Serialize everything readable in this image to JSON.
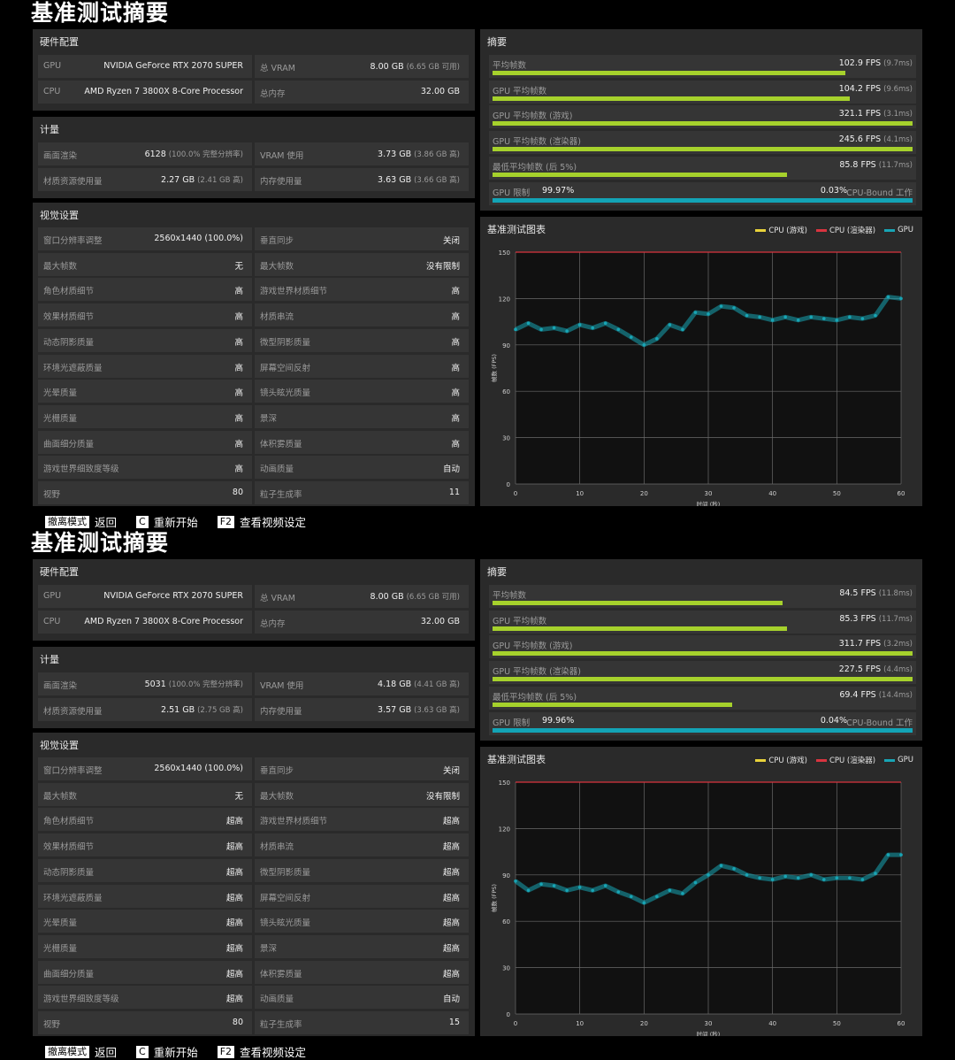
{
  "reports": [
    {
      "title": "基准测试摘要",
      "hardware": {
        "title": "硬件配置",
        "rows": [
          [
            {
              "label": "GPU",
              "value": "NVIDIA GeForce RTX 2070 SUPER",
              "sub": ""
            },
            {
              "label": "总 VRAM",
              "value": "8.00 GB",
              "sub": "(6.65 GB 可用)"
            }
          ],
          [
            {
              "label": "CPU",
              "value": "AMD Ryzen 7 3800X 8-Core Processor",
              "sub": ""
            },
            {
              "label": "总内存",
              "value": "32.00 GB",
              "sub": ""
            }
          ]
        ]
      },
      "metrics": {
        "title": "计量",
        "rows": [
          [
            {
              "label": "画面渲染",
              "value": "6128",
              "sub": "(100.0% 完整分辨率)"
            },
            {
              "label": "VRAM 使用",
              "value": "3.73 GB",
              "sub": "(3.86 GB 高)"
            }
          ],
          [
            {
              "label": "材质资源使用量",
              "value": "2.27 GB",
              "sub": "(2.41 GB 高)"
            },
            {
              "label": "内存使用量",
              "value": "3.63 GB",
              "sub": "(3.66 GB 高)"
            }
          ]
        ]
      },
      "visual": {
        "title": "视觉设置",
        "rows": [
          [
            {
              "label": "窗口分辨率调整",
              "value": "2560x1440 (100.0%)"
            },
            {
              "label": "垂直同步",
              "value": "关闭"
            }
          ],
          [
            {
              "label": "最大帧数",
              "value": "无"
            },
            {
              "label": "最大帧数",
              "value": "没有限制"
            }
          ],
          [
            {
              "label": "角色材质细节",
              "value": "高"
            },
            {
              "label": "游戏世界材质细节",
              "value": "高"
            }
          ],
          [
            {
              "label": "效果材质细节",
              "value": "高"
            },
            {
              "label": "材质串流",
              "value": "高"
            }
          ],
          [
            {
              "label": "动态阴影质量",
              "value": "高"
            },
            {
              "label": "微型阴影质量",
              "value": "高"
            }
          ],
          [
            {
              "label": "环境光遮蔽质量",
              "value": "高"
            },
            {
              "label": "屏幕空间反射",
              "value": "高"
            }
          ],
          [
            {
              "label": "光晕质量",
              "value": "高"
            },
            {
              "label": "镜头眩光质量",
              "value": "高"
            }
          ],
          [
            {
              "label": "光栅质量",
              "value": "高"
            },
            {
              "label": "景深",
              "value": "高"
            }
          ],
          [
            {
              "label": "曲面细分质量",
              "value": "高"
            },
            {
              "label": "体积雾质量",
              "value": "高"
            }
          ],
          [
            {
              "label": "游戏世界细致度等级",
              "value": "高"
            },
            {
              "label": "动画质量",
              "value": "自动"
            }
          ],
          [
            {
              "label": "视野",
              "value": "80"
            },
            {
              "label": "粒子生成率",
              "value": "11"
            }
          ]
        ]
      },
      "summary": {
        "title": "摘要",
        "rows": [
          {
            "label": "平均帧数",
            "value": "102.9 FPS",
            "sub": "(9.7ms)",
            "fraction": 0.84
          },
          {
            "label": "GPU 平均帧数",
            "value": "104.2 FPS",
            "sub": "(9.6ms)",
            "fraction": 0.85
          },
          {
            "label": "GPU 平均帧数 (游戏)",
            "value": "321.1 FPS",
            "sub": "(3.1ms)",
            "fraction": 1.0
          },
          {
            "label": "GPU 平均帧数 (渲染器)",
            "value": "245.6 FPS",
            "sub": "(4.1ms)",
            "fraction": 1.0
          },
          {
            "label": "最低平均帧数 (后 5%)",
            "value": "85.8 FPS",
            "sub": "(11.7ms)",
            "fraction": 0.7
          }
        ],
        "gpu_bound": {
          "label": "GPU 限制",
          "gpu_pct": "99.97%",
          "cpu_pct": "0.03%",
          "cpu_label": "CPU-Bound 工作",
          "fraction": 0.9997
        }
      },
      "chart": {
        "title": "基准测试图表",
        "legend": [
          {
            "name": "CPU (游戏)",
            "color": "#e8d23a"
          },
          {
            "name": "CPU (渲染器)",
            "color": "#d9343f"
          },
          {
            "name": "GPU",
            "color": "#18a5b5"
          }
        ]
      },
      "chart_data": {
        "type": "scatter",
        "xlabel": "时间 (秒)",
        "ylabel": "帧数 (FPS)",
        "xlim": [
          0,
          60
        ],
        "ylim": [
          0,
          150
        ],
        "xticks": [
          0,
          10,
          20,
          30,
          40,
          50,
          60
        ],
        "yticks": [
          0,
          30,
          60,
          90,
          120,
          150
        ],
        "grid": true,
        "series": [
          {
            "name": "GPU",
            "color": "#18a5b5",
            "x": [
              0,
              2,
              4,
              6,
              8,
              10,
              12,
              14,
              16,
              18,
              20,
              22,
              24,
              26,
              28,
              30,
              32,
              34,
              36,
              38,
              40,
              42,
              44,
              46,
              48,
              50,
              52,
              54,
              56,
              58,
              60
            ],
            "y": [
              100,
              104,
              100,
              101,
              99,
              103,
              101,
              104,
              100,
              95,
              90,
              94,
              103,
              100,
              111,
              110,
              115,
              114,
              109,
              108,
              106,
              108,
              106,
              108,
              107,
              106,
              108,
              107,
              109,
              121,
              120
            ]
          },
          {
            "name": "CPU (渲染器)",
            "color": "#d9343f",
            "x": [
              0,
              60
            ],
            "y": [
              150,
              150
            ]
          }
        ]
      },
      "footer": [
        {
          "key": "撤离模式",
          "label": "返回"
        },
        {
          "key": "C",
          "label": "重新开始"
        },
        {
          "key": "F2",
          "label": "查看视频设定"
        }
      ]
    },
    {
      "title": "基准测试摘要",
      "hardware": {
        "title": "硬件配置",
        "rows": [
          [
            {
              "label": "GPU",
              "value": "NVIDIA GeForce RTX 2070 SUPER",
              "sub": ""
            },
            {
              "label": "总 VRAM",
              "value": "8.00 GB",
              "sub": "(6.65 GB 可用)"
            }
          ],
          [
            {
              "label": "CPU",
              "value": "AMD Ryzen 7 3800X 8-Core Processor",
              "sub": ""
            },
            {
              "label": "总内存",
              "value": "32.00 GB",
              "sub": ""
            }
          ]
        ]
      },
      "metrics": {
        "title": "计量",
        "rows": [
          [
            {
              "label": "画面渲染",
              "value": "5031",
              "sub": "(100.0% 完整分辨率)"
            },
            {
              "label": "VRAM 使用",
              "value": "4.18 GB",
              "sub": "(4.41 GB 高)"
            }
          ],
          [
            {
              "label": "材质资源使用量",
              "value": "2.51 GB",
              "sub": "(2.75 GB 高)"
            },
            {
              "label": "内存使用量",
              "value": "3.57 GB",
              "sub": "(3.63 GB 高)"
            }
          ]
        ]
      },
      "visual": {
        "title": "视觉设置",
        "rows": [
          [
            {
              "label": "窗口分辨率调整",
              "value": "2560x1440 (100.0%)"
            },
            {
              "label": "垂直同步",
              "value": "关闭"
            }
          ],
          [
            {
              "label": "最大帧数",
              "value": "无"
            },
            {
              "label": "最大帧数",
              "value": "没有限制"
            }
          ],
          [
            {
              "label": "角色材质细节",
              "value": "超高"
            },
            {
              "label": "游戏世界材质细节",
              "value": "超高"
            }
          ],
          [
            {
              "label": "效果材质细节",
              "value": "超高"
            },
            {
              "label": "材质串流",
              "value": "超高"
            }
          ],
          [
            {
              "label": "动态阴影质量",
              "value": "超高"
            },
            {
              "label": "微型阴影质量",
              "value": "超高"
            }
          ],
          [
            {
              "label": "环境光遮蔽质量",
              "value": "超高"
            },
            {
              "label": "屏幕空间反射",
              "value": "超高"
            }
          ],
          [
            {
              "label": "光晕质量",
              "value": "超高"
            },
            {
              "label": "镜头眩光质量",
              "value": "超高"
            }
          ],
          [
            {
              "label": "光栅质量",
              "value": "超高"
            },
            {
              "label": "景深",
              "value": "超高"
            }
          ],
          [
            {
              "label": "曲面细分质量",
              "value": "超高"
            },
            {
              "label": "体积雾质量",
              "value": "超高"
            }
          ],
          [
            {
              "label": "游戏世界细致度等级",
              "value": "超高"
            },
            {
              "label": "动画质量",
              "value": "自动"
            }
          ],
          [
            {
              "label": "视野",
              "value": "80"
            },
            {
              "label": "粒子生成率",
              "value": "15"
            }
          ]
        ]
      },
      "summary": {
        "title": "摘要",
        "rows": [
          {
            "label": "平均帧数",
            "value": "84.5 FPS",
            "sub": "(11.8ms)",
            "fraction": 0.69
          },
          {
            "label": "GPU 平均帧数",
            "value": "85.3 FPS",
            "sub": "(11.7ms)",
            "fraction": 0.7
          },
          {
            "label": "GPU 平均帧数 (游戏)",
            "value": "311.7 FPS",
            "sub": "(3.2ms)",
            "fraction": 1.0
          },
          {
            "label": "GPU 平均帧数 (渲染器)",
            "value": "227.5 FPS",
            "sub": "(4.4ms)",
            "fraction": 1.0
          },
          {
            "label": "最低平均帧数 (后 5%)",
            "value": "69.4 FPS",
            "sub": "(14.4ms)",
            "fraction": 0.57
          }
        ],
        "gpu_bound": {
          "label": "GPU 限制",
          "gpu_pct": "99.96%",
          "cpu_pct": "0.04%",
          "cpu_label": "CPU-Bound 工作",
          "fraction": 0.9996
        }
      },
      "chart": {
        "title": "基准测试图表",
        "legend": [
          {
            "name": "CPU (游戏)",
            "color": "#e8d23a"
          },
          {
            "name": "CPU (渲染器)",
            "color": "#d9343f"
          },
          {
            "name": "GPU",
            "color": "#18a5b5"
          }
        ]
      },
      "chart_data": {
        "type": "scatter",
        "xlabel": "时间 (秒)",
        "ylabel": "帧数 (FPS)",
        "xlim": [
          0,
          60
        ],
        "ylim": [
          0,
          150
        ],
        "xticks": [
          0,
          10,
          20,
          30,
          40,
          50,
          60
        ],
        "yticks": [
          0,
          30,
          60,
          90,
          120,
          150
        ],
        "grid": true,
        "series": [
          {
            "name": "GPU",
            "color": "#18a5b5",
            "x": [
              0,
              2,
              4,
              6,
              8,
              10,
              12,
              14,
              16,
              18,
              20,
              22,
              24,
              26,
              28,
              30,
              32,
              34,
              36,
              38,
              40,
              42,
              44,
              46,
              48,
              50,
              52,
              54,
              56,
              58,
              60
            ],
            "y": [
              86,
              80,
              84,
              83,
              80,
              82,
              80,
              83,
              79,
              76,
              72,
              76,
              80,
              78,
              85,
              90,
              96,
              94,
              90,
              88,
              87,
              89,
              88,
              90,
              87,
              88,
              88,
              87,
              91,
              103,
              103
            ]
          },
          {
            "name": "CPU (渲染器)",
            "color": "#d9343f",
            "x": [
              0,
              60
            ],
            "y": [
              150,
              150
            ]
          }
        ]
      },
      "footer": [
        {
          "key": "撤离模式",
          "label": "返回"
        },
        {
          "key": "C",
          "label": "重新开始"
        },
        {
          "key": "F2",
          "label": "查看视频设定"
        }
      ]
    }
  ]
}
